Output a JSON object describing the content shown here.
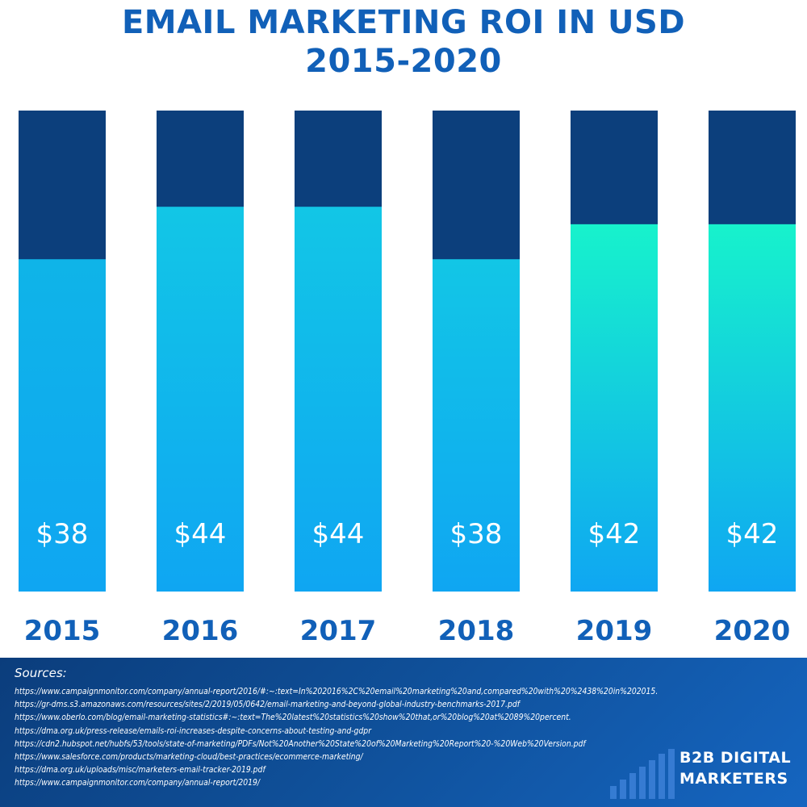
{
  "chart_data": {
    "type": "bar",
    "title_line1": "EMAIL MARKETING ROI IN USD",
    "title_line2": "2015-2020",
    "categories": [
      "2015",
      "2016",
      "2017",
      "2018",
      "2019",
      "2020"
    ],
    "values": [
      38,
      44,
      44,
      38,
      42,
      42
    ],
    "value_labels": [
      "$38",
      "$44",
      "$44",
      "$38",
      "$42",
      "$42"
    ],
    "ylim": [
      0,
      55
    ],
    "grid": false,
    "legend": "none",
    "colors": {
      "title": "#1160b8",
      "track": "#0c3f7c",
      "bar_bottom": "#0fa6f2",
      "bar_top_low": "#12c6e6",
      "bar_top_high": "#17f2cc",
      "year_label": "#1160b8"
    }
  },
  "sources": {
    "label": "Sources:",
    "items": [
      "https://www.campaignmonitor.com/company/annual-report/2016/#:~:text=In%202016%2C%20email%20marketing%20and,compared%20with%20%2438%20in%202015.",
      "https://gr-dms.s3.amazonaws.com/resources/sites/2/2019/05/0642/email-marketing-and-beyond-global-industry-benchmarks-2017.pdf",
      "https://www.oberlo.com/blog/email-marketing-statistics#:~:text=The%20latest%20statistics%20show%20that,or%20blog%20at%2089%20percent.",
      "https://dma.org.uk/press-release/emails-roi-increases-despite-concerns-about-testing-and-gdpr",
      "https://cdn2.hubspot.net/hubfs/53/tools/state-of-marketing/PDFs/Not%20Another%20State%20of%20Marketing%20Report%20-%20Web%20Version.pdf",
      "https://www.salesforce.com/products/marketing-cloud/best-practices/ecommerce-marketing/",
      "https://dma.org.uk/uploads/misc/marketers-email-tracker-2019.pdf",
      "https://www.campaignmonitor.com/company/annual-report/2019/"
    ]
  },
  "logo": {
    "line1": "B2B DIGITAL",
    "line2": "MARKETERS"
  }
}
